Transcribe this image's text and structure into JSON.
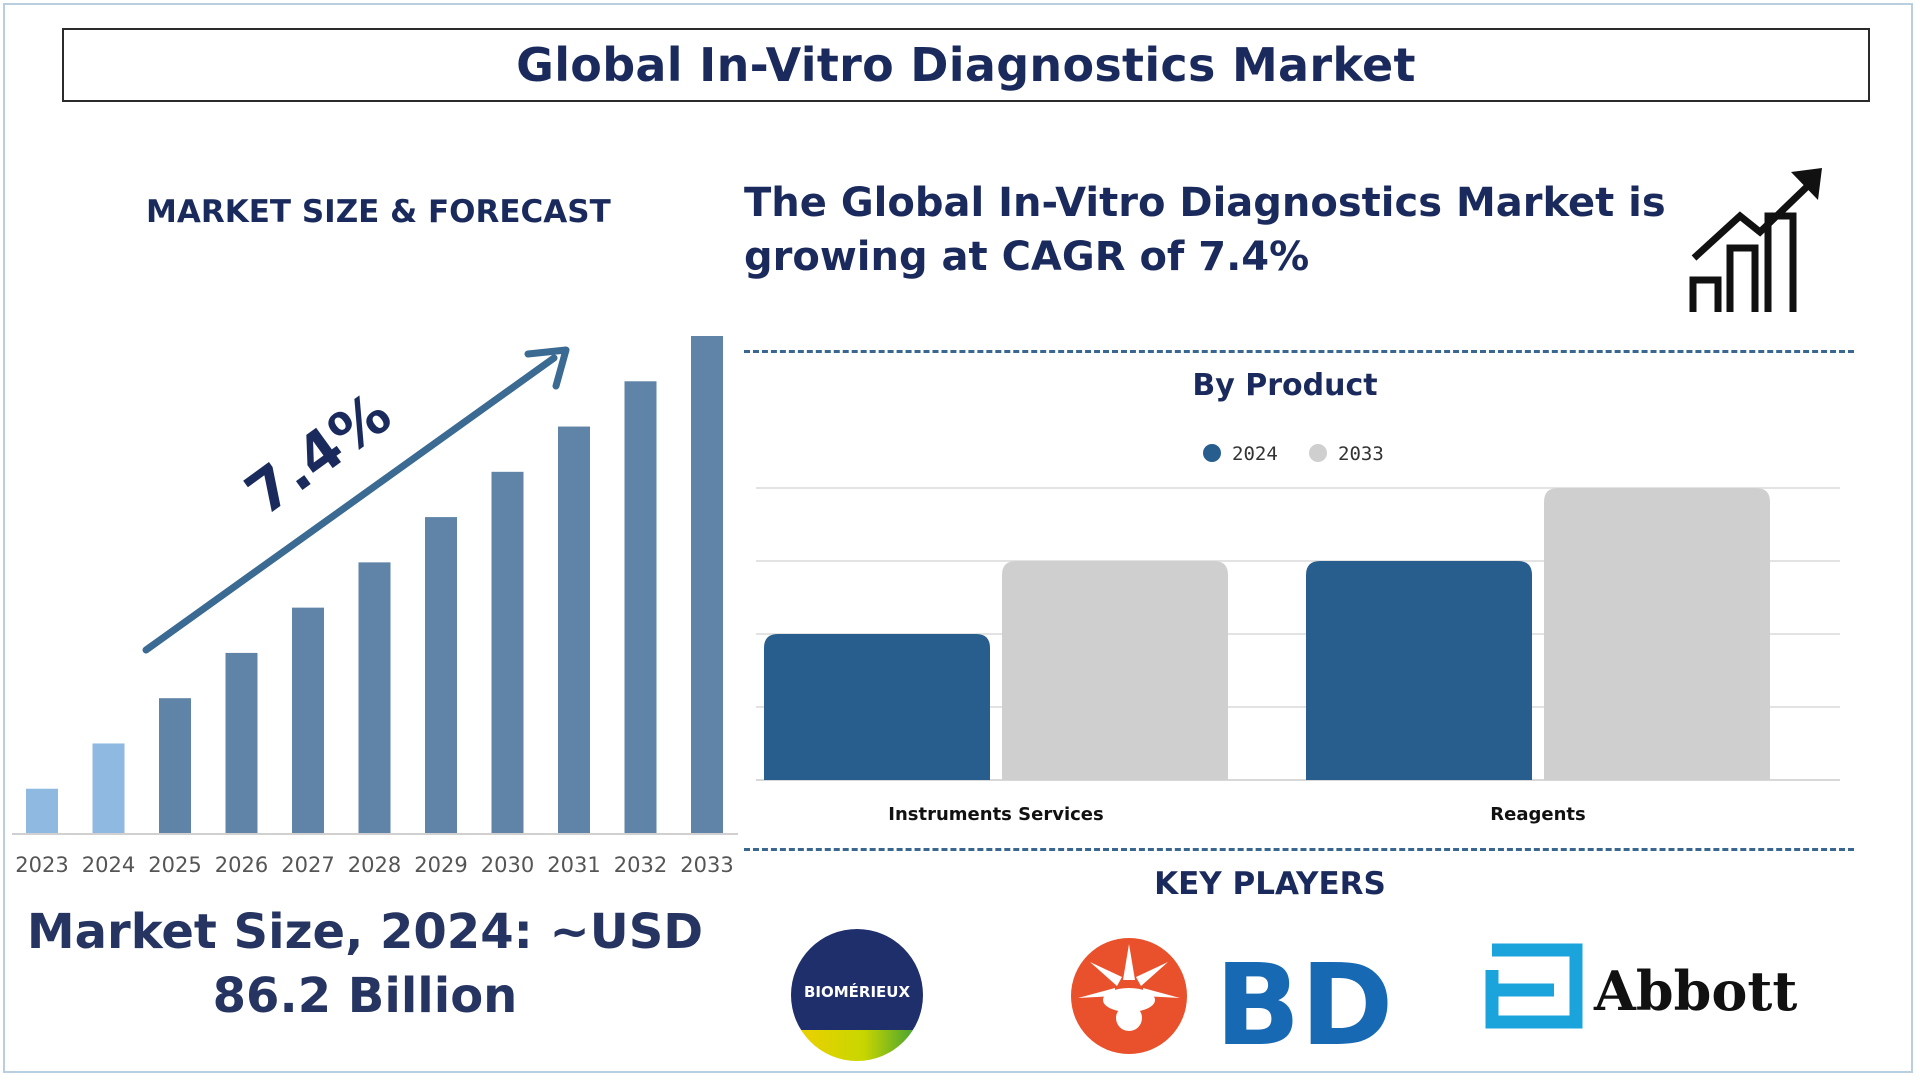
{
  "title": "Global In-Vitro Diagnostics Market",
  "left_panel": {
    "heading": "MARKET SIZE & FORECAST",
    "market_size_line1": "Market Size, 2024: ~USD",
    "market_size_line2": "86.2 Billion"
  },
  "right_panel": {
    "cagr_statement": "The Global In-Vitro Diagnostics Market is growing at CAGR of 7.4%",
    "product_heading": "By Product",
    "key_players_heading": "KEY PLAYERS",
    "key_players": [
      "BIOMÉRIEUX",
      "BD",
      "Abbott"
    ]
  },
  "icons": [
    "growth-chart-icon"
  ],
  "colors": {
    "navy": "#1a2a5c",
    "bar_light": "#8fb9e1",
    "bar_dark": "#5f84a8",
    "series_2024": "#285e8e",
    "series_2033": "#cfcfcf",
    "bd_orange": "#e8512b",
    "bd_blue": "#1869b4",
    "abbott_blue": "#1ba3dc"
  },
  "chart_data": [
    {
      "type": "bar",
      "categories": [
        "2023",
        "2024",
        "2025",
        "2026",
        "2027",
        "2028",
        "2029",
        "2030",
        "2031",
        "2032",
        "2033"
      ],
      "values": [
        1,
        2,
        3,
        4,
        5,
        6,
        7,
        8,
        9,
        10,
        11
      ],
      "highlighted_categories": [
        "2023",
        "2024"
      ],
      "annotation": "7.4%",
      "grid": false,
      "ylim": [
        0,
        11
      ]
    },
    {
      "type": "bar",
      "categories": [
        "Instruments Services",
        "Reagents"
      ],
      "series": [
        {
          "name": "2024",
          "values": [
            2,
            3
          ]
        },
        {
          "name": "2033",
          "values": [
            3,
            4
          ]
        }
      ],
      "ylim": [
        0,
        4
      ],
      "grid": true,
      "legend": "top-center"
    }
  ]
}
